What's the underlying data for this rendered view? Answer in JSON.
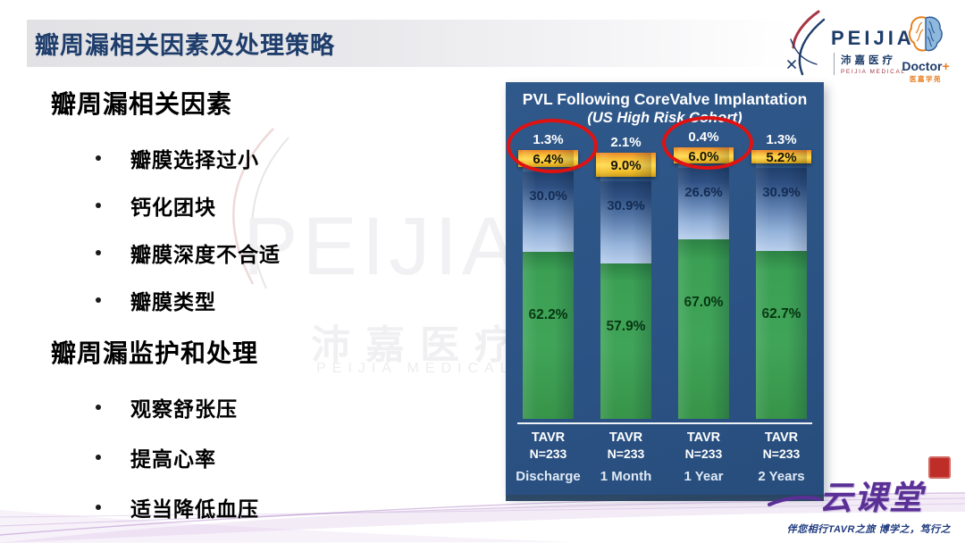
{
  "header": {
    "title": "瓣周漏相关因素及处理策略"
  },
  "logos": {
    "peijia": {
      "wordmark": "PEIJIA",
      "cn": "沛嘉医疗",
      "en": "PEIJIA MEDICAL"
    },
    "doctor": {
      "wordmark": "Doctor",
      "plus": "+",
      "cn": "医嘉学苑"
    },
    "yunketang": {
      "wordmark": "云课堂",
      "tagline": "伴您相行TAVR之旅 博学之，笃行之"
    }
  },
  "watermark": {
    "wordmark": "PEIJIA",
    "cn": "沛嘉医疗",
    "en": "PEIJIA MEDICAL"
  },
  "sections": [
    {
      "heading": "瓣周漏相关因素",
      "bullets": [
        "瓣膜选择过小",
        "钙化团块",
        "瓣膜深度不合适",
        "瓣膜类型"
      ]
    },
    {
      "heading": "瓣周漏监护和处理",
      "bullets": [
        "观察舒张压",
        "提高心率",
        "适当降低血压"
      ]
    }
  ],
  "chart_data": {
    "type": "bar",
    "stacked": true,
    "title": "PVL Following CoreValve Implantation",
    "subtitle": "(US High Risk Cohort)",
    "categories": [
      "Discharge",
      "1 Month",
      "1 Year",
      "2 Years"
    ],
    "group_label": "TAVR",
    "n_labels": [
      "N=233",
      "N=233",
      "N=233",
      "N=233"
    ],
    "ylim": [
      0,
      100
    ],
    "unit": "%",
    "series": [
      {
        "name": "above-bar-value",
        "color": "#ffffff",
        "values": [
          1.3,
          2.1,
          0.4,
          1.3
        ]
      },
      {
        "name": "yellow-segment",
        "color": "#f7c52e",
        "values": [
          6.4,
          9.0,
          6.0,
          5.2
        ]
      },
      {
        "name": "blue-segment",
        "color": "#9fc0e8",
        "values": [
          30.0,
          30.9,
          26.6,
          30.9
        ]
      },
      {
        "name": "green-segment",
        "color": "#3fa055",
        "values": [
          62.2,
          57.9,
          67.0,
          62.7
        ]
      }
    ],
    "highlighted_columns": [
      0,
      2
    ],
    "annotation_color": "#df1212",
    "panel_color": "#2b5384",
    "legend": "none"
  }
}
